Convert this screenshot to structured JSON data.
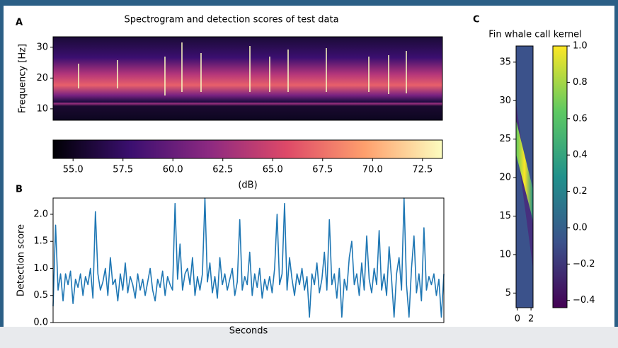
{
  "chart_data": [
    {
      "type": "heatmap",
      "panel_label": "A",
      "title": "Spectrogram and detection scores of test data",
      "ylabel": "Frequency [Hz]",
      "ylim": [
        6.3,
        33.4
      ],
      "yticks": [
        10,
        20,
        30
      ]
    },
    {
      "type": "colorbar",
      "orientation": "horizontal",
      "label": "(dB)",
      "xlim": [
        54.0,
        73.5
      ],
      "xticks": [
        {
          "value": 55,
          "label": "55.0"
        },
        {
          "value": 57.5,
          "label": "57.5"
        },
        {
          "value": 60,
          "label": "60.0"
        },
        {
          "value": 62.5,
          "label": "62.5"
        },
        {
          "value": 65,
          "label": "65.0"
        },
        {
          "value": 67.5,
          "label": "67.5"
        },
        {
          "value": 70,
          "label": "70.0"
        },
        {
          "value": 72.5,
          "label": "72.5"
        }
      ],
      "colors": [
        "#000004",
        "#3b0f70",
        "#8c2981",
        "#de4968",
        "#fe9f6d",
        "#fcfdbf"
      ]
    },
    {
      "type": "line",
      "panel_label": "B",
      "ylabel": "Detection score",
      "xlabel": "Seconds",
      "color": "#1f77b4",
      "ylim": [
        0,
        2.3
      ],
      "yticks": [
        {
          "value": 0,
          "label": "0.0"
        },
        {
          "value": 0.5,
          "label": "0.5"
        },
        {
          "value": 1,
          "label": "1.0"
        },
        {
          "value": 1.5,
          "label": "1.5"
        },
        {
          "value": 2,
          "label": "2.0"
        }
      ],
      "values": [
        0.3,
        1.8,
        0.6,
        0.9,
        0.4,
        0.9,
        0.7,
        0.95,
        0.35,
        0.8,
        0.65,
        0.9,
        0.5,
        0.85,
        0.7,
        1.0,
        0.45,
        2.05,
        0.9,
        0.6,
        0.75,
        1.0,
        0.5,
        1.2,
        0.7,
        0.8,
        0.4,
        0.9,
        0.6,
        1.1,
        0.55,
        0.85,
        0.7,
        0.45,
        0.9,
        0.6,
        0.8,
        0.5,
        0.75,
        1.0,
        0.6,
        0.4,
        0.8,
        0.65,
        0.95,
        0.5,
        0.85,
        0.7,
        0.6,
        2.2,
        0.8,
        1.45,
        0.6,
        0.9,
        1.0,
        0.7,
        1.2,
        0.5,
        0.85,
        0.6,
        0.9,
        2.3,
        0.75,
        1.1,
        0.55,
        0.85,
        0.45,
        1.2,
        0.7,
        0.9,
        0.6,
        0.8,
        1.0,
        0.5,
        0.75,
        1.9,
        0.6,
        0.85,
        0.7,
        1.3,
        0.5,
        0.9,
        0.65,
        1.0,
        0.45,
        0.8,
        0.6,
        0.85,
        0.55,
        1.0,
        2.0,
        0.7,
        0.9,
        2.2,
        0.6,
        1.2,
        0.8,
        0.5,
        0.9,
        0.7,
        1.0,
        0.6,
        0.85,
        0.1,
        0.9,
        0.7,
        1.1,
        0.55,
        0.8,
        1.3,
        0.6,
        1.9,
        0.7,
        0.9,
        0.45,
        1.0,
        0.1,
        0.8,
        0.6,
        1.2,
        1.5,
        0.7,
        0.9,
        0.5,
        1.1,
        0.6,
        1.6,
        0.8,
        0.55,
        1.0,
        0.7,
        1.7,
        0.6,
        0.9,
        0.5,
        1.4,
        0.8,
        0.1,
        0.9,
        1.2,
        0.6,
        2.3,
        0.7,
        0.1,
        1.0,
        1.6,
        0.55,
        0.9,
        0.4,
        1.75,
        0.6,
        0.85,
        0.7,
        0.9,
        0.5,
        0.8,
        0.1,
        0.9
      ]
    },
    {
      "type": "heatmap",
      "panel_label": "C",
      "title": "Fin whale call kernel",
      "xlim": [
        -0.2,
        2.3
      ],
      "xticks": [
        0,
        2
      ],
      "ylim": [
        3.1,
        37.1
      ],
      "yticks": [
        5,
        10,
        15,
        20,
        25,
        30,
        35
      ]
    },
    {
      "type": "colorbar",
      "orientation": "vertical",
      "ylim": [
        -0.44,
        1.0
      ],
      "yticks": [
        {
          "value": 1,
          "label": "1.0"
        },
        {
          "value": 0.8,
          "label": "0.8"
        },
        {
          "value": 0.6,
          "label": "0.6"
        },
        {
          "value": 0.4,
          "label": "0.4"
        },
        {
          "value": 0.2,
          "label": "0.2"
        },
        {
          "value": 0,
          "label": "0.0"
        },
        {
          "value": -0.2,
          "label": "−0.2"
        },
        {
          "value": -0.4,
          "label": "−0.4"
        }
      ],
      "colors": [
        "#440154",
        "#3b528b",
        "#21918c",
        "#5ec962",
        "#fde725"
      ]
    }
  ]
}
